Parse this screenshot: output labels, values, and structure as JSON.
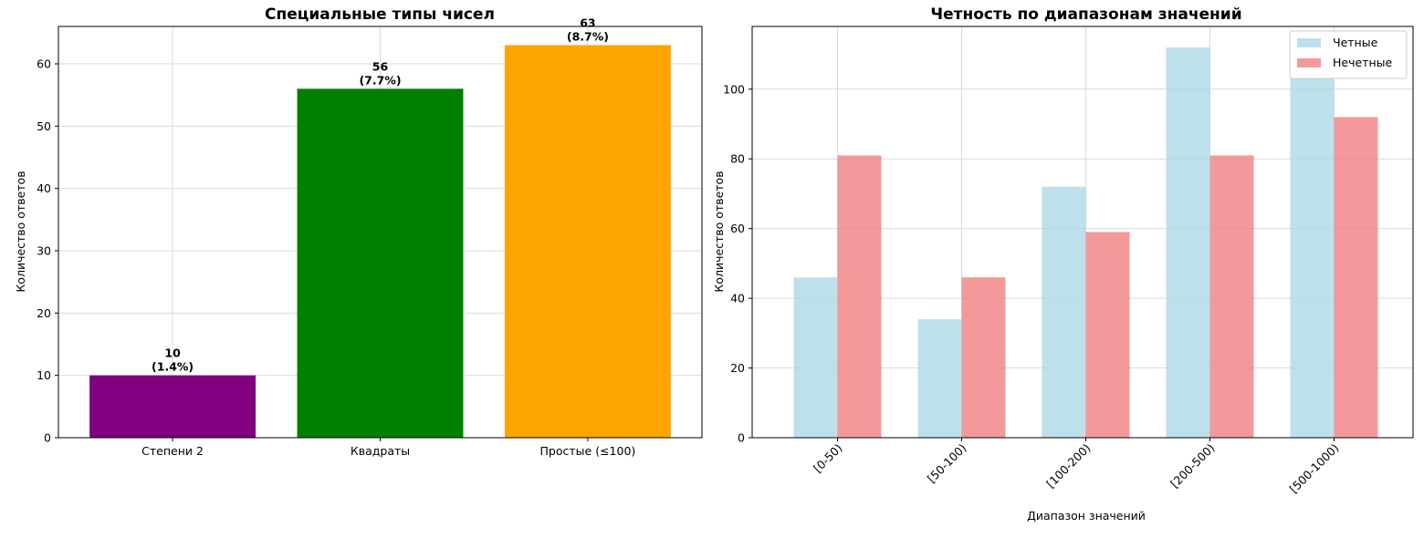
{
  "chart_data": [
    {
      "type": "bar",
      "title": "Специальные типы чисел",
      "xlabel": "",
      "ylabel": "Количество ответов",
      "categories": [
        "Степени 2",
        "Квадраты",
        "Простые (≤100)"
      ],
      "values": [
        10,
        56,
        63
      ],
      "bar_labels": [
        "10",
        "56",
        "63"
      ],
      "bar_percents": [
        "(1.4%)",
        "(7.7%)",
        "(8.7%)"
      ],
      "colors": [
        "#800080",
        "#008000",
        "#ffa500"
      ],
      "ylim": [
        0,
        66
      ],
      "yticks": [
        0,
        10,
        20,
        30,
        40,
        50,
        60
      ],
      "grid": true
    },
    {
      "type": "bar",
      "title": "Четность по диапазонам значений",
      "xlabel": "Диапазон значений",
      "ylabel": "Количество ответов",
      "categories": [
        "[0-50)",
        "[50-100)",
        "[100-200)",
        "[200-500)",
        "[500-1000)"
      ],
      "series": [
        {
          "name": "Четные",
          "values": [
            46,
            34,
            72,
            112,
            103
          ],
          "color": "#add8e6"
        },
        {
          "name": "Нечетные",
          "values": [
            81,
            46,
            59,
            81,
            92
          ],
          "color": "#f08080"
        }
      ],
      "ylim": [
        0,
        118
      ],
      "yticks": [
        0,
        20,
        40,
        60,
        80,
        100
      ],
      "legend": "top-right",
      "grid": true
    }
  ]
}
